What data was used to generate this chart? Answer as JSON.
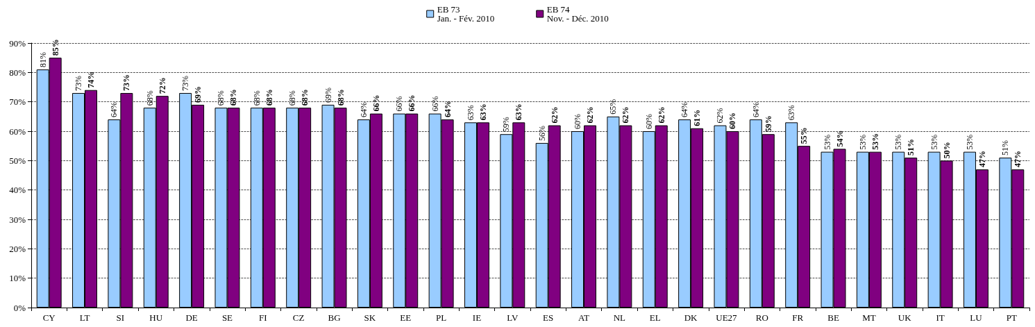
{
  "chart_data": {
    "type": "bar",
    "categories": [
      "CY",
      "LT",
      "SI",
      "HU",
      "DE",
      "SE",
      "FI",
      "CZ",
      "BG",
      "SK",
      "EE",
      "PL",
      "IE",
      "LV",
      "ES",
      "AT",
      "NL",
      "EL",
      "DK",
      "UE27",
      "RO",
      "FR",
      "BE",
      "MT",
      "UK",
      "IT",
      "LU",
      "PT"
    ],
    "series": [
      {
        "name": "EB 73\nJan. - Fév. 2010",
        "color": "#99ccff",
        "values": [
          81,
          73,
          64,
          68,
          73,
          68,
          68,
          68,
          69,
          64,
          66,
          66,
          63,
          59,
          56,
          60,
          65,
          60,
          64,
          62,
          64,
          63,
          53,
          53,
          53,
          53,
          53,
          51
        ],
        "value_labels": [
          "81%",
          "73%",
          "64%",
          "68%",
          "73%",
          "68%",
          "68%",
          "68%",
          "69%",
          "64%",
          "66%",
          "66%",
          "63%",
          "59%",
          "56%",
          "60%",
          "65%",
          "60%",
          "64%",
          "62%",
          "64%",
          "63%",
          "53%",
          "53%",
          "53%",
          "53%",
          "53%",
          "51%"
        ]
      },
      {
        "name": "EB 74\nNov. - Déc. 2010",
        "color": "#800080",
        "values": [
          85,
          74,
          73,
          72,
          69,
          68,
          68,
          68,
          68,
          66,
          66,
          64,
          63,
          63,
          62,
          62,
          62,
          62,
          61,
          60,
          59,
          55,
          54,
          53,
          51,
          50,
          47,
          47
        ],
        "value_labels": [
          "85%",
          "74%",
          "73%",
          "72%",
          "69%",
          "68%",
          "68%",
          "68%",
          "68%",
          "66%",
          "66%",
          "64%",
          "63%",
          "63%",
          "62%",
          "62%",
          "62%",
          "62%",
          "61%",
          "60%",
          "59%",
          "55%",
          "54%",
          "53%",
          "51%",
          "50%",
          "47%",
          "47%"
        ]
      }
    ],
    "ylim": [
      0,
      90
    ],
    "yticks": [
      {
        "value": 0,
        "label": "0%"
      },
      {
        "value": 10,
        "label": "10%"
      },
      {
        "value": 20,
        "label": "20%"
      },
      {
        "value": 30,
        "label": "30%"
      },
      {
        "value": 40,
        "label": "40%"
      },
      {
        "value": 50,
        "label": "50%"
      },
      {
        "value": 60,
        "label": "60%"
      },
      {
        "value": 70,
        "label": "70%"
      },
      {
        "value": 80,
        "label": "80%"
      },
      {
        "value": 90,
        "label": "90%"
      }
    ],
    "grid": "y",
    "line_style": "dashed",
    "legend": "top"
  }
}
